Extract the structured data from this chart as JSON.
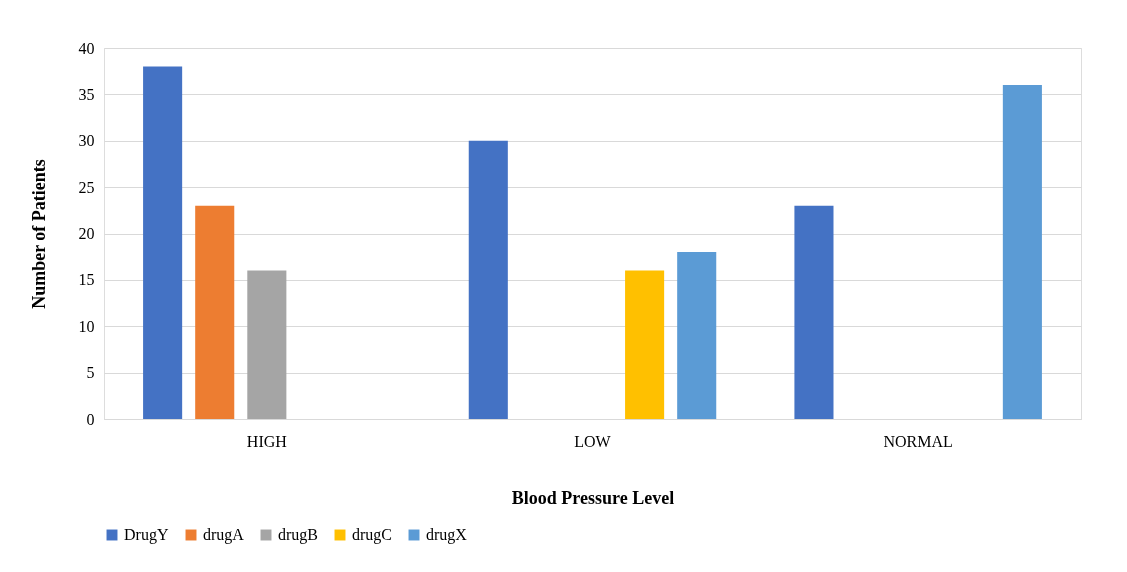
{
  "chart_data": {
    "type": "bar",
    "xlabel": "Blood Pressure Level",
    "ylabel": "Number of Patients",
    "categories": [
      "HIGH",
      "LOW",
      "NORMAL"
    ],
    "series": [
      {
        "name": "DrugY",
        "color": "#4472c4",
        "values": [
          38,
          30,
          23
        ]
      },
      {
        "name": "drugA",
        "color": "#ed7d31",
        "values": [
          23,
          null,
          null
        ]
      },
      {
        "name": "drugB",
        "color": "#a5a5a5",
        "values": [
          16,
          null,
          null
        ]
      },
      {
        "name": "drugC",
        "color": "#ffc000",
        "values": [
          null,
          16,
          null
        ]
      },
      {
        "name": "drugX",
        "color": "#5b9bd5",
        "values": [
          null,
          18,
          36
        ]
      }
    ],
    "ylim": [
      0,
      40
    ],
    "yticks": [
      0,
      5,
      10,
      15,
      20,
      25,
      30,
      35,
      40
    ],
    "grid": "y",
    "legend": "bottom"
  }
}
